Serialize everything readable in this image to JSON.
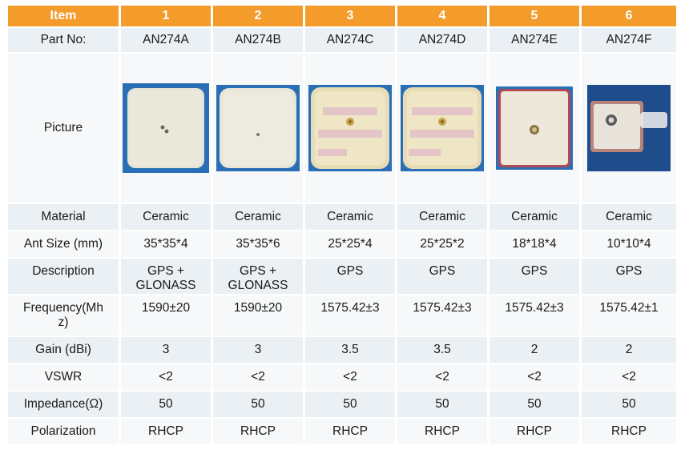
{
  "header": {
    "label": "Item",
    "items": [
      "1",
      "2",
      "3",
      "4",
      "5",
      "6"
    ]
  },
  "rows": {
    "part_no": {
      "label": "Part No:",
      "values": [
        "AN274A",
        "AN274B",
        "AN274C",
        "AN274D",
        "AN274E",
        "AN274F"
      ]
    },
    "picture": {
      "label": "Picture"
    },
    "material": {
      "label": "Material",
      "values": [
        "Ceramic",
        "Ceramic",
        "Ceramic",
        "Ceramic",
        "Ceramic",
        "Ceramic"
      ]
    },
    "ant_size": {
      "label": "Ant Size (mm)",
      "values": [
        "35*35*4",
        "35*35*6",
        "25*25*4",
        "25*25*2",
        "18*18*4",
        "10*10*4"
      ]
    },
    "description": {
      "label": "Description",
      "values": [
        [
          "GPS +",
          "GLONASS"
        ],
        [
          "GPS +",
          "GLONASS"
        ],
        [
          "GPS"
        ],
        [
          "GPS"
        ],
        [
          "GPS"
        ],
        [
          "GPS"
        ]
      ]
    },
    "frequency": {
      "label": [
        "Frequency(Mh",
        "z)"
      ],
      "values": [
        "1590±20",
        "1590±20",
        "1575.42±3",
        "1575.42±3",
        "1575.42±3",
        "1575.42±1"
      ]
    },
    "gain": {
      "label": "Gain (dBi)",
      "values": [
        "3",
        "3",
        "3.5",
        "3.5",
        "2",
        "2"
      ]
    },
    "vswr": {
      "label": "VSWR",
      "values": [
        "<2",
        "<2",
        "<2",
        "<2",
        "<2",
        "<2"
      ]
    },
    "impedance": {
      "label": "Impedance(Ω)",
      "values": [
        "50",
        "50",
        "50",
        "50",
        "50",
        "50"
      ]
    },
    "polarization": {
      "label": "Polarization",
      "values": [
        "RHCP",
        "RHCP",
        "RHCP",
        "RHCP",
        "RHCP",
        "RHCP"
      ]
    }
  },
  "colors": {
    "header_bg": "#f39b2b",
    "header_text": "#ffffff",
    "row_odd": "#eaf0f3",
    "row_even": "#f6f8f9"
  }
}
